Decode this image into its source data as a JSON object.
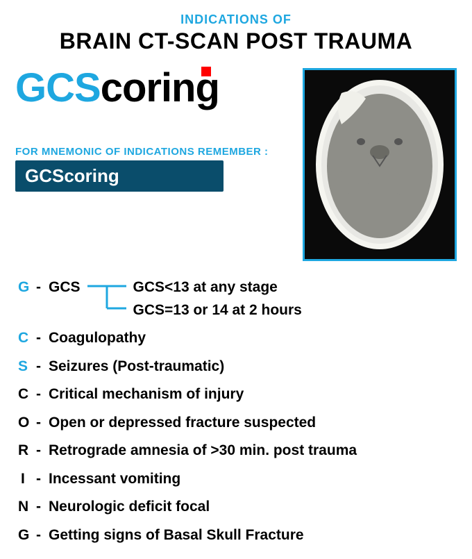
{
  "colors": {
    "accent": "#1ea7e0",
    "badge_bg": "#0a4d6b",
    "bracket": "#1ea7e0",
    "red": "#ff0000",
    "black": "#000000",
    "scan_border": "#1ea7e0",
    "scan_bg": "#0a0a0a"
  },
  "header": {
    "overline": "INDICATIONS OF",
    "title": "BRAIN CT-SCAN POST TRAUMA"
  },
  "logo": {
    "blue_part": "GCS",
    "black_part": "coring"
  },
  "mnemonic": {
    "label": "FOR MNEMONIC OF INDICATIONS REMEMBER :",
    "badge": "GCScoring"
  },
  "letter_colors": {
    "G": "#1ea7e0",
    "C": "#1ea7e0",
    "S": "#1ea7e0",
    "c": "#000000",
    "O": "#000000",
    "R": "#000000",
    "I": "#000000",
    "N": "#000000",
    "g": "#000000"
  },
  "items": [
    {
      "letter": "G",
      "color": "#1ea7e0",
      "label": "GCS",
      "sub": [
        "GCS<13 at any stage",
        "GCS=13 or 14 at 2 hours"
      ]
    },
    {
      "letter": "C",
      "color": "#1ea7e0",
      "text": "Coagulopathy"
    },
    {
      "letter": "S",
      "color": "#1ea7e0",
      "text": "Seizures (Post-traumatic)"
    },
    {
      "letter": "C",
      "color": "#000000",
      "text": "Critical mechanism of injury"
    },
    {
      "letter": "O",
      "color": "#000000",
      "text": "Open or depressed fracture suspected"
    },
    {
      "letter": "R",
      "color": "#000000",
      "text": "Retrograde amnesia of >30 min. post trauma"
    },
    {
      "letter": "I",
      "color": "#000000",
      "text": "Incessant vomiting",
      "letter_pad": true
    },
    {
      "letter": "N",
      "color": "#000000",
      "text": "Neurologic deficit focal"
    },
    {
      "letter": "G",
      "color": "#000000",
      "text": "Getting signs of Basal Skull Fracture"
    }
  ]
}
